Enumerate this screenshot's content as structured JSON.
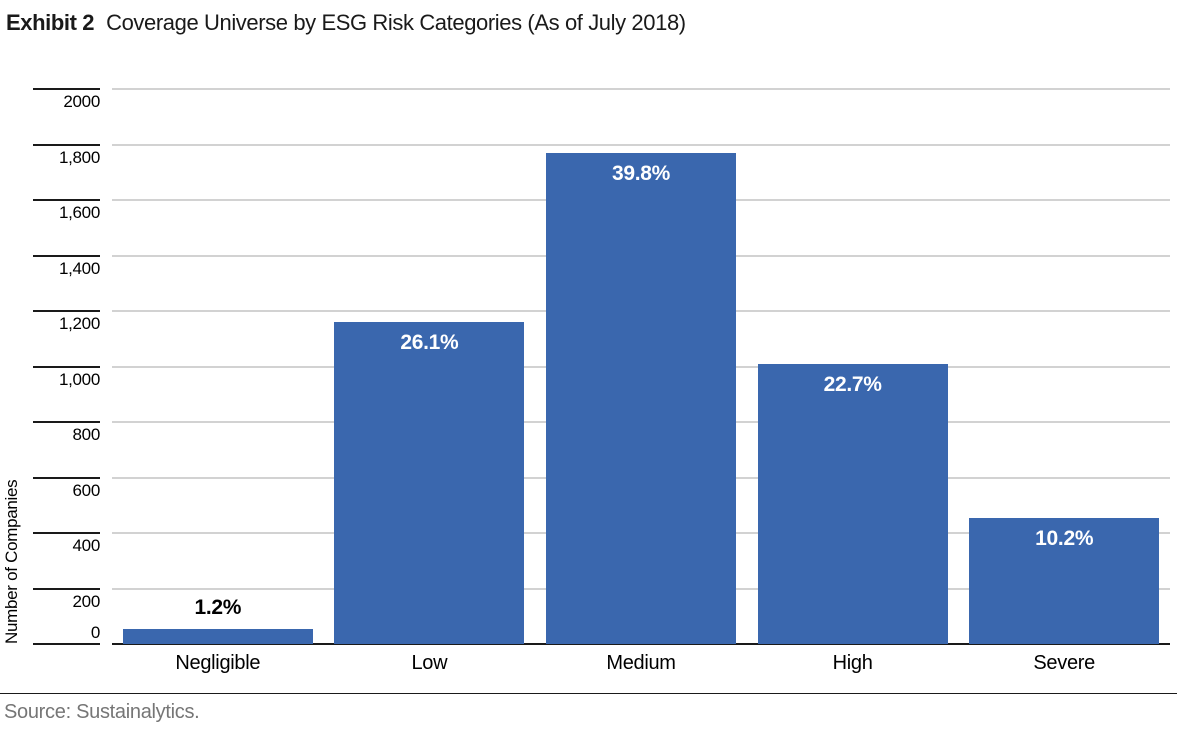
{
  "header": {
    "exhibit_label": "Exhibit 2",
    "title": "Coverage Universe by ESG Risk Categories (As of July 2018)"
  },
  "chart_data": {
    "type": "bar",
    "categories": [
      "Negligible",
      "Low",
      "Medium",
      "High",
      "Severe"
    ],
    "values": [
      53,
      1160,
      1770,
      1009,
      453
    ],
    "percentages": [
      1.2,
      26.1,
      39.8,
      22.7,
      10.2
    ],
    "percent_labels": [
      "1.2%",
      "26.1%",
      "39.8%",
      "22.7%",
      "10.2%"
    ],
    "title": "Coverage Universe by ESG Risk Categories (As of July 2018)",
    "xlabel": "",
    "ylabel": "Number of Companies",
    "ylim": [
      0,
      2000
    ],
    "ytick_values": [
      0,
      200,
      400,
      600,
      800,
      1000,
      1200,
      1400,
      1600,
      1800,
      2000
    ],
    "ytick_labels": [
      "0",
      "200",
      "400",
      "600",
      "800",
      "1,000",
      "1,200",
      "1,400",
      "1,600",
      "1,800",
      "2000"
    ],
    "grid": true,
    "legend_position": "none",
    "colors": {
      "bar": "#3A67AE",
      "grid": "#D2D2D2",
      "axis": "#1A1A1A",
      "label_inside": "#FFFFFF",
      "label_outside": "#000000"
    }
  },
  "footer": {
    "source": "Source: Sustainalytics."
  }
}
